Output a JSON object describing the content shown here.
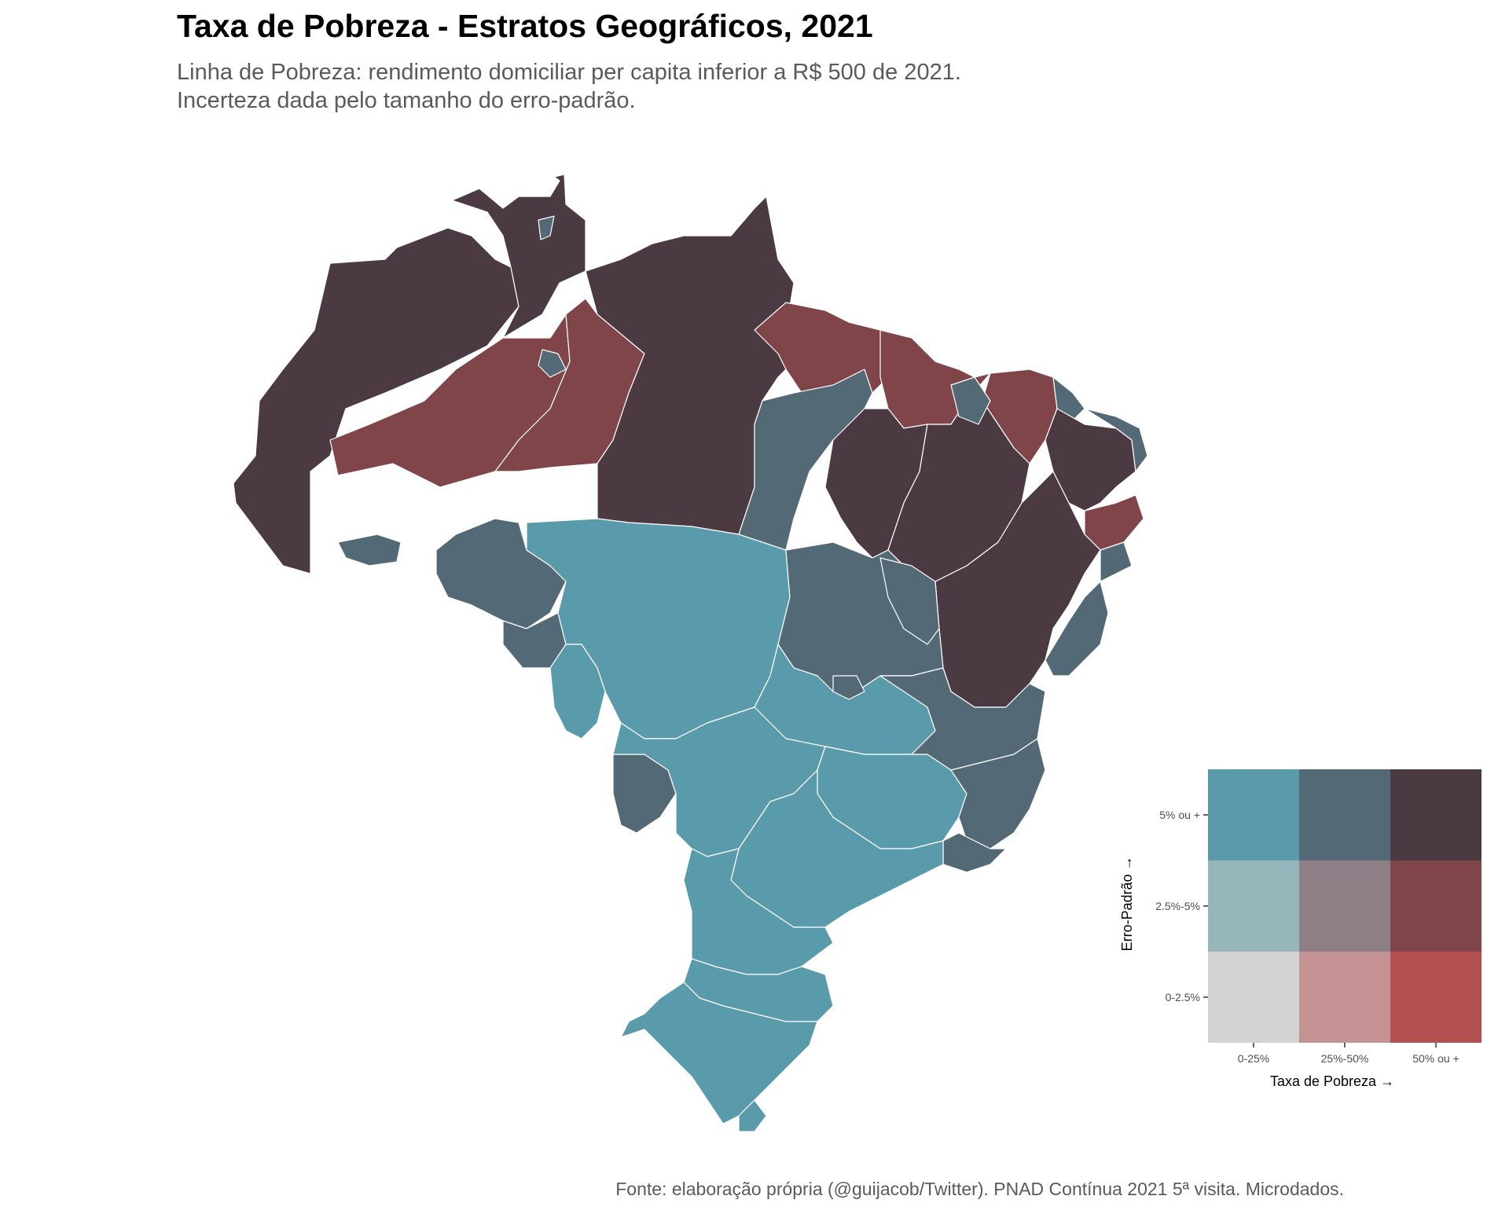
{
  "title": "Taxa de Pobreza - Estratos Geográficos, 2021",
  "subtitle": [
    "Linha de Pobreza: rendimento domiciliar per capita inferior a R$ 500 de 2021.",
    "Incerteza dada pelo tamanho do erro-padrão."
  ],
  "caption": "Fonte: elaboração própria (@guijacob/Twitter). PNAD Contínua 2021 5ª visita. Microdados.",
  "legend": {
    "x_title": "Taxa de Pobreza",
    "y_title": "Erro-Padrão",
    "arrow": "→",
    "x_labels": [
      "0-25%",
      "25%-50%",
      "50% ou +"
    ],
    "y_labels": [
      "0-2.5%",
      "2.5%-5%",
      "5% ou +"
    ],
    "colors": [
      [
        "#d3d3d3",
        "#c49293",
        "#b35152"
      ],
      [
        "#97b6bb",
        "#8e7e86",
        "#804548"
      ],
      [
        "#5a9bab",
        "#536a76",
        "#4b3a41"
      ]
    ]
  },
  "map": {
    "region_border_color": "#ffffff",
    "classes": {
      "low_rate_high_se": "#5a9bab",
      "mid_rate_high_se": "#536a76",
      "high_rate_high_se": "#4b3a41",
      "high_rate_mid_se": "#804548"
    }
  }
}
